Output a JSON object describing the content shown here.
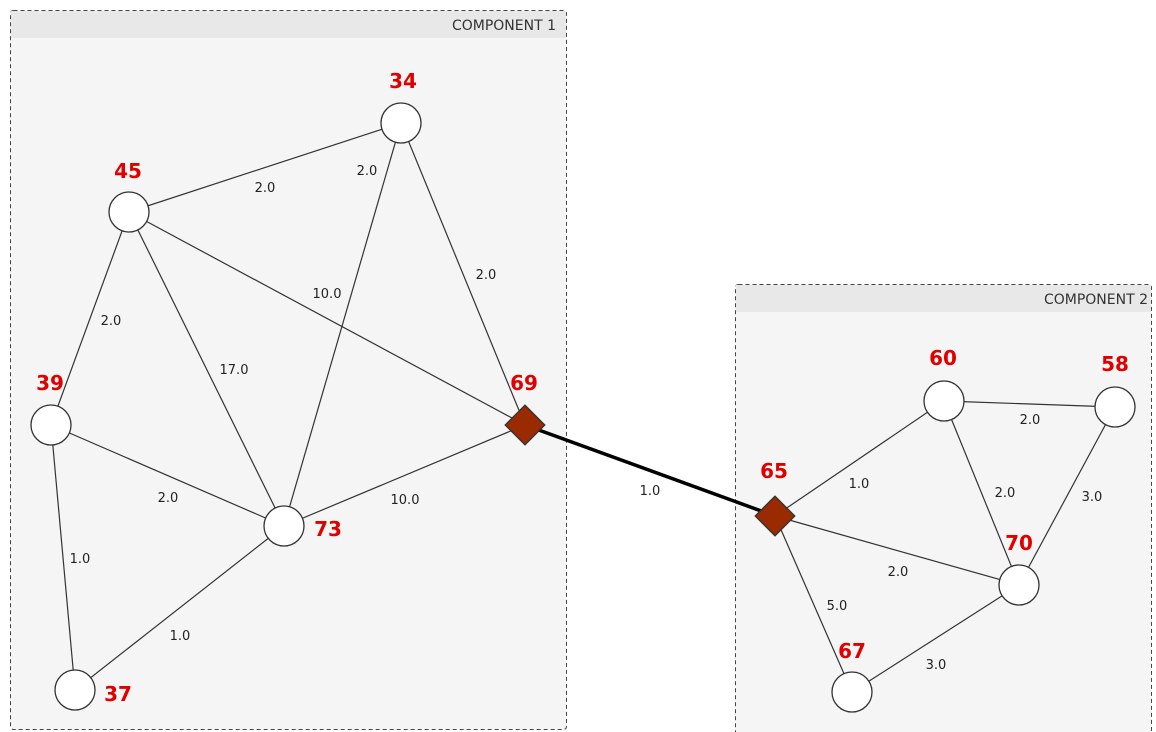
{
  "components": [
    {
      "title": "COMPONENT 1"
    },
    {
      "title": "COMPONENT 2"
    }
  ],
  "nodes": [
    {
      "label": "34"
    },
    {
      "label": "45"
    },
    {
      "label": "39"
    },
    {
      "label": "73"
    },
    {
      "label": "37"
    },
    {
      "label": "69"
    },
    {
      "label": "60"
    },
    {
      "label": "58"
    },
    {
      "label": "65"
    },
    {
      "label": "70"
    },
    {
      "label": "67"
    }
  ],
  "edges": [
    {
      "label": "2.0"
    },
    {
      "label": "2.0"
    },
    {
      "label": "2.0"
    },
    {
      "label": "10.0"
    },
    {
      "label": "2.0"
    },
    {
      "label": "17.0"
    },
    {
      "label": "2.0"
    },
    {
      "label": "10.0"
    },
    {
      "label": "1.0"
    },
    {
      "label": "1.0"
    },
    {
      "label": "1.0"
    },
    {
      "label": "1.0"
    },
    {
      "label": "2.0"
    },
    {
      "label": "2.0"
    },
    {
      "label": "3.0"
    },
    {
      "label": "2.0"
    },
    {
      "label": "5.0"
    },
    {
      "label": "3.0"
    }
  ]
}
